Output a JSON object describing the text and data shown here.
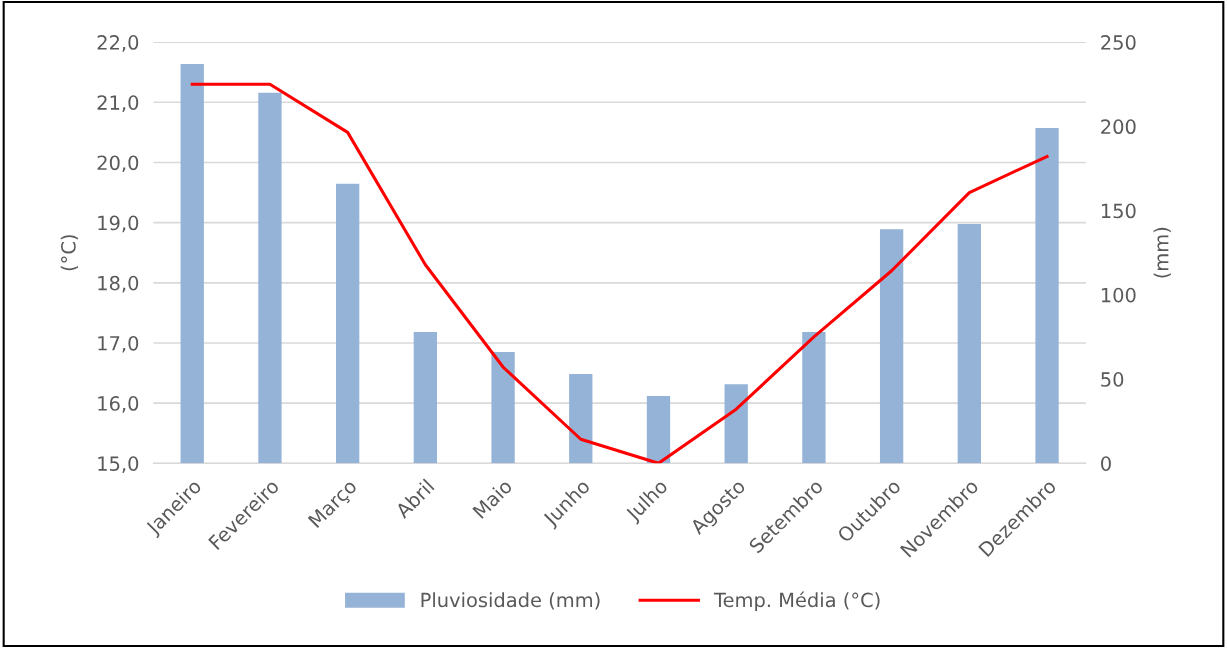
{
  "chart_data": {
    "type": "bar",
    "categories": [
      "Janeiro",
      "Fevereiro",
      "Março",
      "Abril",
      "Maio",
      "Junho",
      "Julho",
      "Agosto",
      "Setembro",
      "Outubro",
      "Novembro",
      "Dezembro"
    ],
    "series": [
      {
        "name": "Pluviosidade (mm)",
        "axis": "y2",
        "color": "#95b3d7",
        "values": [
          237,
          220,
          166,
          78,
          66,
          53,
          40,
          47,
          78,
          139,
          142,
          199
        ]
      },
      {
        "name": "Temp. Média (°C)",
        "type": "line",
        "color": "#ff0000",
        "values": [
          21.3,
          21.3,
          20.5,
          18.3,
          16.6,
          15.4,
          15.0,
          15.9,
          17.1,
          18.2,
          19.5,
          20.1
        ]
      }
    ],
    "ylabel": "(°C)",
    "y2label": "(mm)",
    "ylim": [
      15,
      22
    ],
    "yticks": [
      {
        "value": 15,
        "label": "15,0"
      },
      {
        "value": 16,
        "label": "16,0"
      },
      {
        "value": 17,
        "label": "17,0"
      },
      {
        "value": 18,
        "label": "18,0"
      },
      {
        "value": 19,
        "label": "19,0"
      },
      {
        "value": 20,
        "label": "20,0"
      },
      {
        "value": 21,
        "label": "21,0"
      },
      {
        "value": 22,
        "label": "22,0"
      }
    ],
    "y2lim": [
      0,
      250
    ],
    "y2ticks": [
      0,
      50,
      100,
      150,
      200,
      250
    ],
    "grid": "y",
    "legend": "bottom",
    "marker": "none",
    "line_style": "solid"
  }
}
